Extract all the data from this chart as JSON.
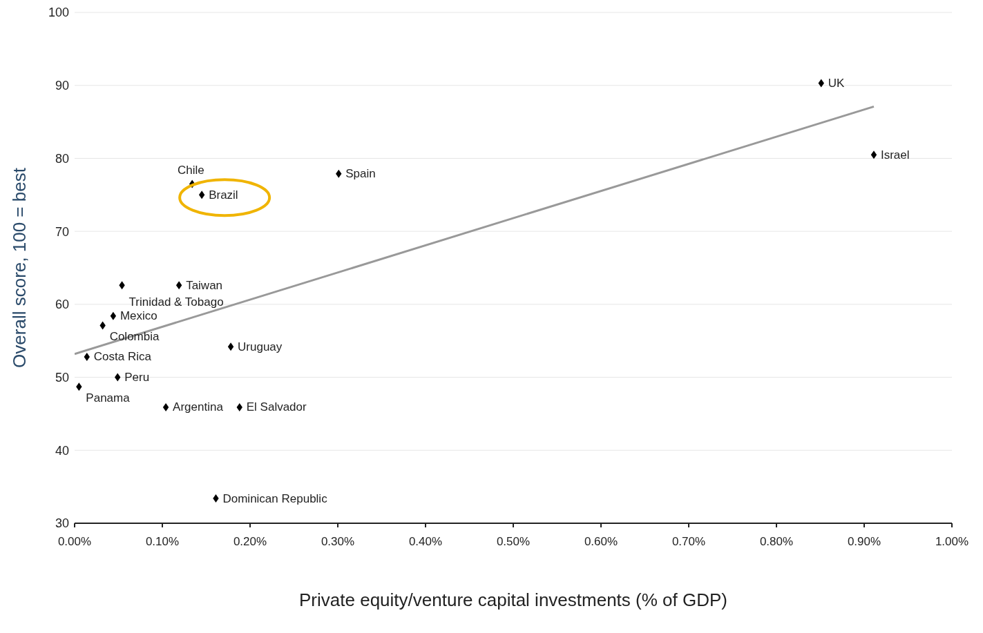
{
  "chart_data": {
    "type": "scatter",
    "xlabel": "Private equity/venture capital investments (% of GDP)",
    "ylabel": "Overall score, 100 = best",
    "xlim": [
      0,
      1
    ],
    "xticks": [
      {
        "value": 0,
        "label": "0.00%"
      },
      {
        "value": 0.1,
        "label": "0.10%"
      },
      {
        "value": 0.2,
        "label": "0.20%"
      },
      {
        "value": 0.3,
        "label": "0.30%"
      },
      {
        "value": 0.4,
        "label": "0.40%"
      },
      {
        "value": 0.5,
        "label": "0.50%"
      },
      {
        "value": 0.6,
        "label": "0.60%"
      },
      {
        "value": 0.7,
        "label": "0.70%"
      },
      {
        "value": 0.8,
        "label": "0.80%"
      },
      {
        "value": 0.9,
        "label": "0.90%"
      },
      {
        "value": 1,
        "label": "1.00%"
      }
    ],
    "ylim": [
      30,
      100
    ],
    "yticks": [
      30,
      40,
      50,
      60,
      70,
      80,
      90,
      100
    ],
    "grid": "y",
    "legend": false,
    "marker": "diamond",
    "series": [
      {
        "color": "#000000",
        "x": [
          0.851,
          0.911,
          0.301,
          0.134,
          0.145,
          0.054,
          0.119,
          0.044,
          0.032,
          0.014,
          0.178,
          0.049,
          0.005,
          0.104,
          0.188,
          0.161
        ],
        "values": [
          90.3,
          80.5,
          77.9,
          76.5,
          75.0,
          62.6,
          62.6,
          58.4,
          57.1,
          52.8,
          54.2,
          50.0,
          48.7,
          45.9,
          45.9,
          33.4
        ]
      },
      {
        "type": "line",
        "marker": "none",
        "color": "#999999",
        "x": [
          0,
          0.911
        ],
        "values": [
          53.2,
          87.1
        ]
      }
    ],
    "annotations": [
      {
        "text": "UK",
        "x": 0.851,
        "y": 90.3
      },
      {
        "text": "Israel",
        "x": 0.911,
        "y": 80.5
      },
      {
        "text": "Spain",
        "x": 0.301,
        "y": 77.9
      },
      {
        "text": "Chile",
        "x": 0.134,
        "y": 76.5
      },
      {
        "text": "Brazil",
        "x": 0.145,
        "y": 75.0
      },
      {
        "text": "Trinidad & Tobago",
        "x": 0.054,
        "y": 62.6
      },
      {
        "text": "Taiwan",
        "x": 0.119,
        "y": 62.6
      },
      {
        "text": "Mexico",
        "x": 0.044,
        "y": 58.4
      },
      {
        "text": "Colombia",
        "x": 0.032,
        "y": 57.1
      },
      {
        "text": "Costa Rica",
        "x": 0.014,
        "y": 52.8
      },
      {
        "text": "Uruguay",
        "x": 0.178,
        "y": 54.2
      },
      {
        "text": "Peru",
        "x": 0.049,
        "y": 50.0
      },
      {
        "text": "Panama",
        "x": 0.005,
        "y": 48.7
      },
      {
        "text": "Argentina",
        "x": 0.104,
        "y": 45.9
      },
      {
        "text": "El Salvador",
        "x": 0.188,
        "y": 45.9
      },
      {
        "text": "Dominican Republic",
        "x": 0.161,
        "y": 33.4
      }
    ]
  }
}
